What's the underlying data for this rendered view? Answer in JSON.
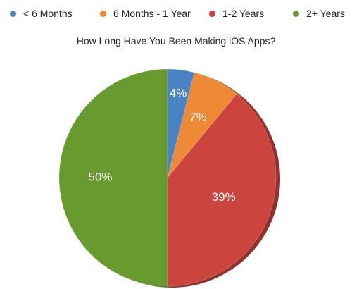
{
  "chart_data": {
    "type": "pie",
    "title": "How Long Have You Been Making iOS Apps?",
    "categories": [
      "< 6 Months",
      "6 Months - 1 Year",
      "1-2 Years",
      "2+ Years"
    ],
    "values": [
      4,
      7,
      39,
      50
    ],
    "labels": [
      "4%",
      "7%",
      "39%",
      "50%"
    ],
    "colors": [
      "#4a83c3",
      "#ee8a36",
      "#cc443e",
      "#699a30"
    ],
    "legend": "top"
  }
}
